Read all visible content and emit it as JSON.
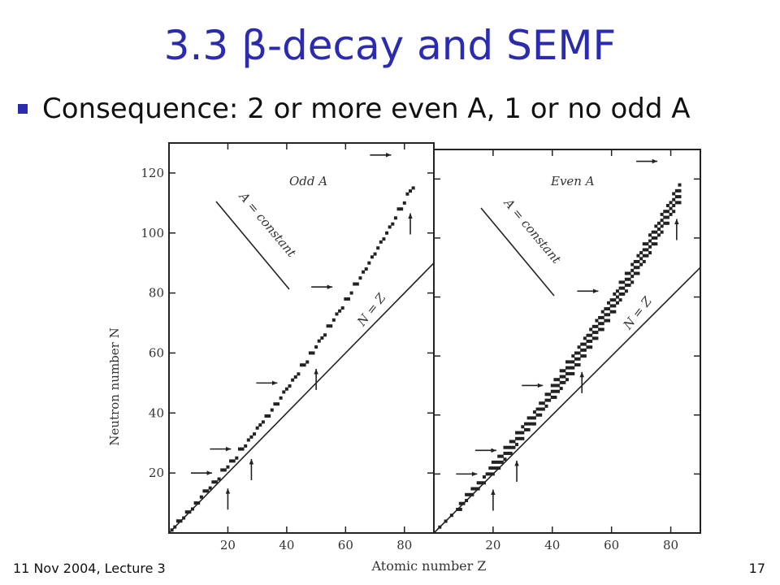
{
  "slide": {
    "title": "3.3 β-decay and SEMF",
    "bullet": "Consequence: 2 or more even A, 1 or no odd A",
    "footer_left": "11 Nov 2004, Lecture 3",
    "page_number": "17"
  },
  "colors": {
    "title": "#2b2bb0",
    "bullet": "#2b2bb0",
    "ink": "#111111"
  },
  "chart_data": [
    {
      "type": "scatter",
      "panel": "left",
      "title": "Odd A",
      "xlabel": "Atomic number Z",
      "ylabel": "Neutron number N",
      "xlim": [
        0,
        90
      ],
      "ylim": [
        0,
        130
      ],
      "x_ticks": [
        "20",
        "40",
        "60",
        "80"
      ],
      "y_ticks": [
        "20",
        "40",
        "60",
        "80",
        "100",
        "120"
      ],
      "annotations": [
        "A = constant",
        "N = Z"
      ]
    },
    {
      "type": "scatter",
      "panel": "right",
      "title": "Even A",
      "xlabel": "Atomic number Z",
      "ylabel": "Neutron number N",
      "xlim": [
        0,
        90
      ],
      "ylim": [
        0,
        130
      ],
      "x_ticks": [
        "20",
        "40",
        "60",
        "80"
      ],
      "y_ticks": [],
      "annotations": [
        "A = constant",
        "N = Z"
      ]
    }
  ]
}
